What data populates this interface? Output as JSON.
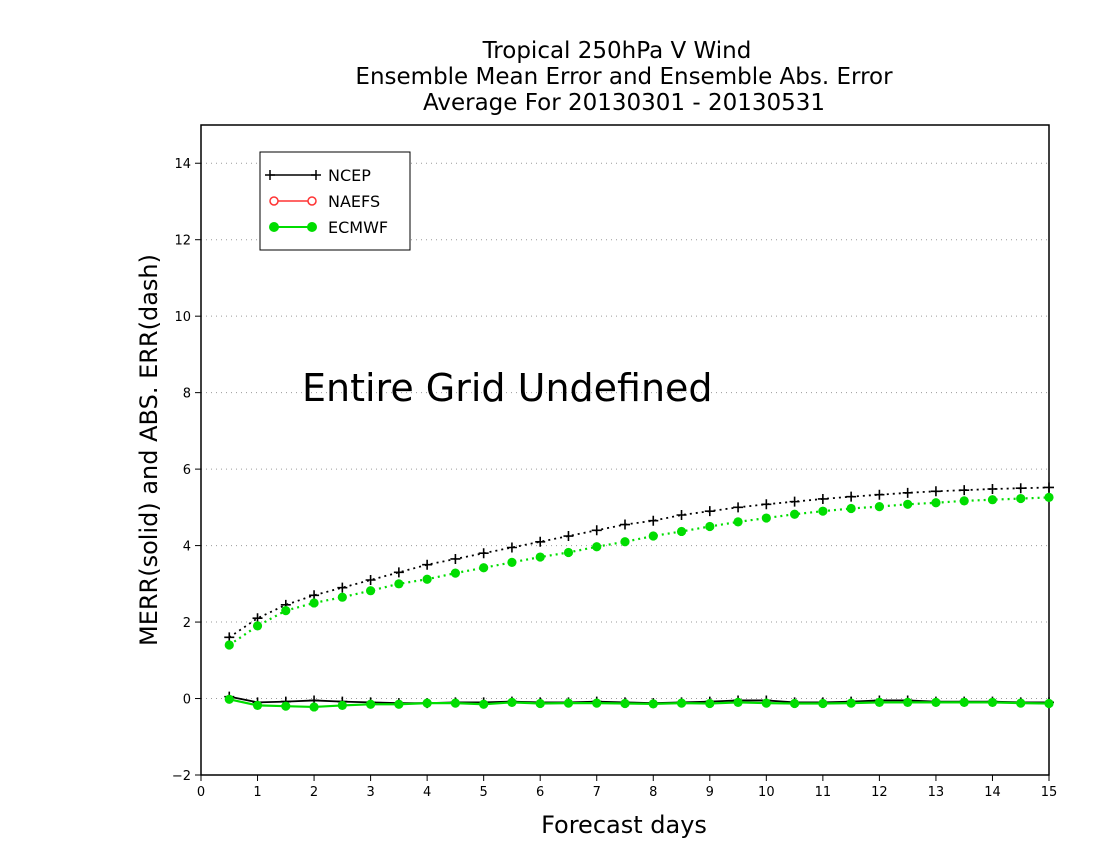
{
  "chart_data": {
    "type": "line",
    "title_lines": [
      "Tropical 250hPa V Wind",
      "Ensemble Mean Error and Ensemble Abs. Error",
      "Average For 20130301 - 20130531"
    ],
    "xlabel": "Forecast days",
    "ylabel": "MERR(solid) and ABS. ERR(dash)",
    "xlim": [
      0,
      15
    ],
    "ylim": [
      -2,
      15
    ],
    "xticks": [
      0,
      1,
      2,
      3,
      4,
      5,
      6,
      7,
      8,
      9,
      10,
      11,
      12,
      13,
      14,
      15
    ],
    "yticks": [
      -2,
      0,
      2,
      4,
      6,
      8,
      10,
      12,
      14
    ],
    "grid": "horizontal dotted",
    "legend_position": "top-left",
    "annotation": "Entire Grid Undefined",
    "x": [
      0.5,
      1,
      1.5,
      2,
      2.5,
      3,
      3.5,
      4,
      4.5,
      5,
      5.5,
      6,
      6.5,
      7,
      7.5,
      8,
      8.5,
      9,
      9.5,
      10,
      10.5,
      11,
      11.5,
      12,
      12.5,
      13,
      13.5,
      14,
      14.5,
      15
    ],
    "series": [
      {
        "name": "NCEP",
        "color": "#000000",
        "marker": "plus",
        "abs_err": [
          1.6,
          2.1,
          2.45,
          2.7,
          2.9,
          3.1,
          3.3,
          3.5,
          3.65,
          3.8,
          3.95,
          4.1,
          4.25,
          4.4,
          4.55,
          4.65,
          4.8,
          4.9,
          5.0,
          5.08,
          5.15,
          5.22,
          5.28,
          5.33,
          5.38,
          5.42,
          5.45,
          5.48,
          5.5,
          5.52
        ],
        "mean_err": [
          0.05,
          -0.1,
          -0.08,
          -0.05,
          -0.08,
          -0.1,
          -0.12,
          -0.12,
          -0.1,
          -0.1,
          -0.08,
          -0.1,
          -0.1,
          -0.08,
          -0.1,
          -0.12,
          -0.1,
          -0.08,
          -0.05,
          -0.05,
          -0.1,
          -0.1,
          -0.08,
          -0.05,
          -0.05,
          -0.08,
          -0.08,
          -0.08,
          -0.1,
          -0.1
        ]
      },
      {
        "name": "NAEFS",
        "color": "#ff3333",
        "marker": "open-circle",
        "abs_err": [],
        "mean_err": []
      },
      {
        "name": "ECMWF",
        "color": "#00dd00",
        "marker": "filled-circle",
        "abs_err": [
          1.4,
          1.9,
          2.3,
          2.5,
          2.65,
          2.82,
          3.0,
          3.12,
          3.28,
          3.42,
          3.56,
          3.7,
          3.82,
          3.97,
          4.1,
          4.25,
          4.37,
          4.5,
          4.62,
          4.72,
          4.82,
          4.9,
          4.97,
          5.02,
          5.08,
          5.12,
          5.17,
          5.2,
          5.23,
          5.26
        ],
        "mean_err": [
          -0.02,
          -0.18,
          -0.2,
          -0.22,
          -0.18,
          -0.15,
          -0.15,
          -0.12,
          -0.12,
          -0.15,
          -0.1,
          -0.13,
          -0.12,
          -0.12,
          -0.13,
          -0.14,
          -0.12,
          -0.13,
          -0.1,
          -0.12,
          -0.13,
          -0.13,
          -0.12,
          -0.1,
          -0.1,
          -0.1,
          -0.1,
          -0.1,
          -0.12,
          -0.13
        ]
      }
    ]
  }
}
